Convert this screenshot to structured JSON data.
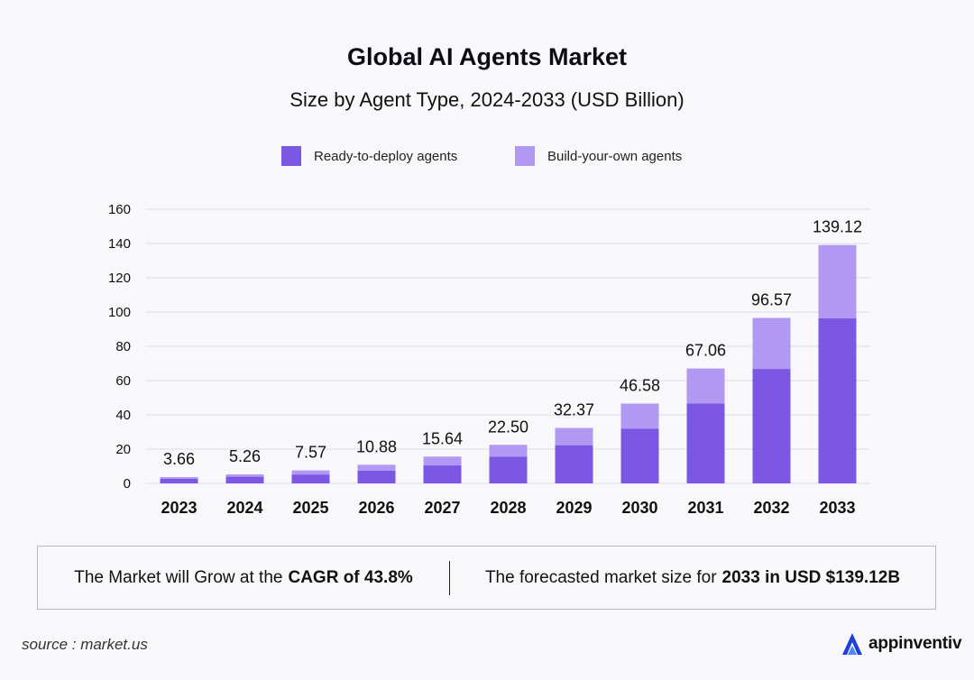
{
  "header": {
    "title": "Global AI Agents Market",
    "subtitle": "Size by Agent Type, 2024-2033 (USD Billion)"
  },
  "colors": {
    "ready": "#7b57e4",
    "build": "#b198f3",
    "grid": "#dcdce3"
  },
  "chart_data": {
    "type": "bar",
    "stacked": true,
    "title": "Global AI Agents Market",
    "subtitle": "Size by Agent Type, 2024-2033 (USD Billion)",
    "categories": [
      "2023",
      "2024",
      "2025",
      "2026",
      "2027",
      "2028",
      "2029",
      "2030",
      "2031",
      "2032",
      "2033"
    ],
    "series": [
      {
        "name": "Ready-to-deploy agents",
        "values": [
          2.8,
          3.9,
          5.2,
          7.4,
          10.5,
          15.7,
          22.3,
          32.0,
          46.7,
          66.8,
          96.3
        ]
      },
      {
        "name": "Build-your-own agents",
        "values": [
          0.86,
          1.36,
          2.37,
          3.48,
          5.14,
          6.8,
          10.07,
          14.58,
          20.36,
          29.77,
          42.82
        ]
      }
    ],
    "totals": [
      "3.66",
      "5.26",
      "7.57",
      "10.88",
      "15.64",
      "22.50",
      "32.37",
      "46.58",
      "67.06",
      "96.57",
      "139.12"
    ],
    "ylim": [
      0,
      160
    ],
    "yticks": [
      0,
      20,
      40,
      60,
      80,
      100,
      120,
      140,
      160
    ],
    "xlabel": "",
    "ylabel": "",
    "grid": true,
    "legend_position": "top-center"
  },
  "summary": {
    "left_prefix": "The Market will Grow at the",
    "left_bold": "CAGR of 43.8%",
    "right_prefix": "The forecasted market size for",
    "right_bold": "2033 in USD $139.12B"
  },
  "footer": {
    "source": "source : market.us",
    "brand": "appinventiv"
  }
}
